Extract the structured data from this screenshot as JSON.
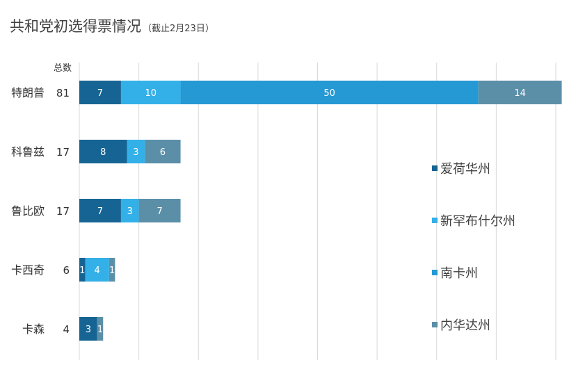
{
  "title": "共和党初选得票情况",
  "subtitle": "（截止2月23日）",
  "chart_data": {
    "type": "bar",
    "orientation": "horizontal",
    "stacked": true,
    "total_header": "总数",
    "categories": [
      "特朗普",
      "科鲁兹",
      "鲁比欧",
      "卡西奇",
      "卡森"
    ],
    "totals": [
      "81",
      "17",
      "17",
      "6",
      "4"
    ],
    "series": [
      {
        "name": "爱荷华州",
        "color": "#166493",
        "values": [
          7,
          8,
          7,
          1,
          3
        ]
      },
      {
        "name": "新罕布什尔州",
        "color": "#33b0e8",
        "values": [
          10,
          3,
          3,
          4,
          0
        ]
      },
      {
        "name": "南卡州",
        "color": "#2599d3",
        "values": [
          50,
          0,
          0,
          0,
          0
        ]
      },
      {
        "name": "内华达州",
        "color": "#5b8fa8",
        "values": [
          14,
          6,
          7,
          1,
          1
        ]
      }
    ],
    "xlim": [
      0,
      80
    ],
    "grid": true,
    "legend_position": "right"
  }
}
